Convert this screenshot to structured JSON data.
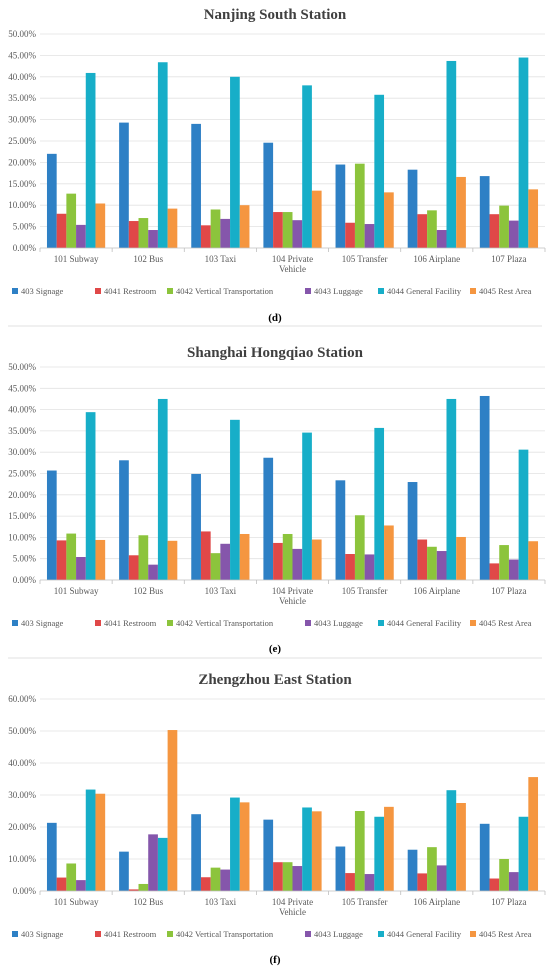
{
  "colors": [
    "#2e80c5",
    "#e04848",
    "#8cc43c",
    "#8556ab",
    "#17aec8",
    "#f59640"
  ],
  "legend": [
    "403 Signage",
    "4041 Restroom",
    "4042 Vertical Transportation",
    "4043 Luggage",
    "4044 General Facility",
    "4045 Rest Area"
  ],
  "chart_data": [
    {
      "type": "bar",
      "title": "Nanjing South Station",
      "panel_label": "(d)",
      "categories": [
        "101 Subway",
        "102 Bus",
        "103 Taxi",
        "104 Private Vehicle",
        "105 Transfer",
        "106 Airplane",
        "107 Plaza"
      ],
      "category_lines": [
        [
          "101 Subway"
        ],
        [
          "102 Bus"
        ],
        [
          "103 Taxi"
        ],
        [
          "104 Private",
          "Vehicle"
        ],
        [
          "105 Transfer"
        ],
        [
          "106 Airplane"
        ],
        [
          "107 Plaza"
        ]
      ],
      "ylim": [
        0,
        50
      ],
      "yticks": [
        "0.00%",
        "5.00%",
        "10.00%",
        "15.00%",
        "20.00%",
        "25.00%",
        "30.00%",
        "35.00%",
        "40.00%",
        "45.00%",
        "50.00%"
      ],
      "series": [
        {
          "name": "403 Signage",
          "values": [
            22.0,
            29.3,
            29.0,
            24.6,
            19.5,
            18.3,
            16.8
          ]
        },
        {
          "name": "4041 Restroom",
          "values": [
            8.0,
            6.3,
            5.3,
            8.4,
            5.9,
            7.9,
            7.9
          ]
        },
        {
          "name": "4042 Vertical Transportation",
          "values": [
            12.7,
            7.0,
            9.0,
            8.4,
            19.7,
            8.8,
            9.9
          ]
        },
        {
          "name": "4043 Luggage",
          "values": [
            5.4,
            4.2,
            6.8,
            6.5,
            5.6,
            4.2,
            6.4
          ]
        },
        {
          "name": "4044 General Facility",
          "values": [
            40.9,
            43.4,
            40.0,
            38.0,
            35.8,
            43.7,
            44.5
          ]
        },
        {
          "name": "4045 Rest Area",
          "values": [
            10.4,
            9.2,
            10.0,
            13.4,
            13.0,
            16.6,
            13.7
          ]
        }
      ]
    },
    {
      "type": "bar",
      "title": "Shanghai Hongqiao Station",
      "panel_label": "(e)",
      "categories": [
        "101 Subway",
        "102 Bus",
        "103 Taxi",
        "104 Private Vehicle",
        "105 Transfer",
        "106 Airplane",
        "107 Plaza"
      ],
      "category_lines": [
        [
          "101 Subway"
        ],
        [
          "102 Bus"
        ],
        [
          "103 Taxi"
        ],
        [
          "104 Private",
          "Vehicle"
        ],
        [
          "105 Transfer"
        ],
        [
          "106 Airplane"
        ],
        [
          "107 Plaza"
        ]
      ],
      "ylim": [
        0,
        50
      ],
      "yticks": [
        "0.00%",
        "5.00%",
        "10.00%",
        "15.00%",
        "20.00%",
        "25.00%",
        "30.00%",
        "35.00%",
        "40.00%",
        "45.00%",
        "50.00%"
      ],
      "series": [
        {
          "name": "403 Signage",
          "values": [
            25.7,
            28.1,
            24.9,
            28.7,
            23.4,
            23.0,
            43.2
          ]
        },
        {
          "name": "4041 Restroom",
          "values": [
            9.3,
            5.8,
            11.4,
            8.7,
            6.1,
            9.5,
            3.9
          ]
        },
        {
          "name": "4042 Vertical Transportation",
          "values": [
            10.9,
            10.5,
            6.3,
            10.8,
            15.2,
            7.8,
            8.2
          ]
        },
        {
          "name": "4043 Luggage",
          "values": [
            5.4,
            3.6,
            8.5,
            7.3,
            6.0,
            6.8,
            4.8
          ]
        },
        {
          "name": "4044 General Facility",
          "values": [
            39.4,
            42.5,
            37.6,
            34.6,
            35.7,
            42.5,
            30.6
          ]
        },
        {
          "name": "4045 Rest Area",
          "values": [
            9.4,
            9.2,
            10.8,
            9.5,
            12.8,
            10.1,
            9.1
          ]
        }
      ]
    },
    {
      "type": "bar",
      "title": "Zhengzhou East Station",
      "panel_label": "(f)",
      "categories": [
        "101 Subway",
        "102 Bus",
        "103 Taxi",
        "104 Private Vehicle",
        "105 Transfer",
        "106 Airplane",
        "107 Plaza"
      ],
      "category_lines": [
        [
          "101 Subway"
        ],
        [
          "102 Bus"
        ],
        [
          "103 Taxi"
        ],
        [
          "104 Private",
          "Vehicle"
        ],
        [
          "105 Transfer"
        ],
        [
          "106 Airplane"
        ],
        [
          "107 Plaza"
        ]
      ],
      "ylim": [
        0,
        60
      ],
      "yticks": [
        "0.00%",
        "10.00%",
        "20.00%",
        "30.00%",
        "40.00%",
        "50.00%",
        "60.00%"
      ],
      "series": [
        {
          "name": "403 Signage",
          "values": [
            21.3,
            12.3,
            24.0,
            22.3,
            13.9,
            12.9,
            21.0
          ]
        },
        {
          "name": "4041 Restroom",
          "values": [
            4.2,
            0.5,
            4.3,
            9.0,
            5.6,
            5.5,
            3.9
          ]
        },
        {
          "name": "4042 Vertical Transportation",
          "values": [
            8.6,
            2.2,
            7.3,
            9.0,
            25.0,
            13.7,
            10.0
          ]
        },
        {
          "name": "4043 Luggage",
          "values": [
            3.4,
            17.7,
            6.7,
            7.8,
            5.3,
            8.0,
            5.9
          ]
        },
        {
          "name": "4044 General Facility",
          "values": [
            31.7,
            16.6,
            29.2,
            26.1,
            23.2,
            31.5,
            23.2
          ]
        },
        {
          "name": "4045 Rest Area",
          "values": [
            30.4,
            50.3,
            27.7,
            24.9,
            26.3,
            27.5,
            35.6
          ]
        }
      ]
    }
  ]
}
